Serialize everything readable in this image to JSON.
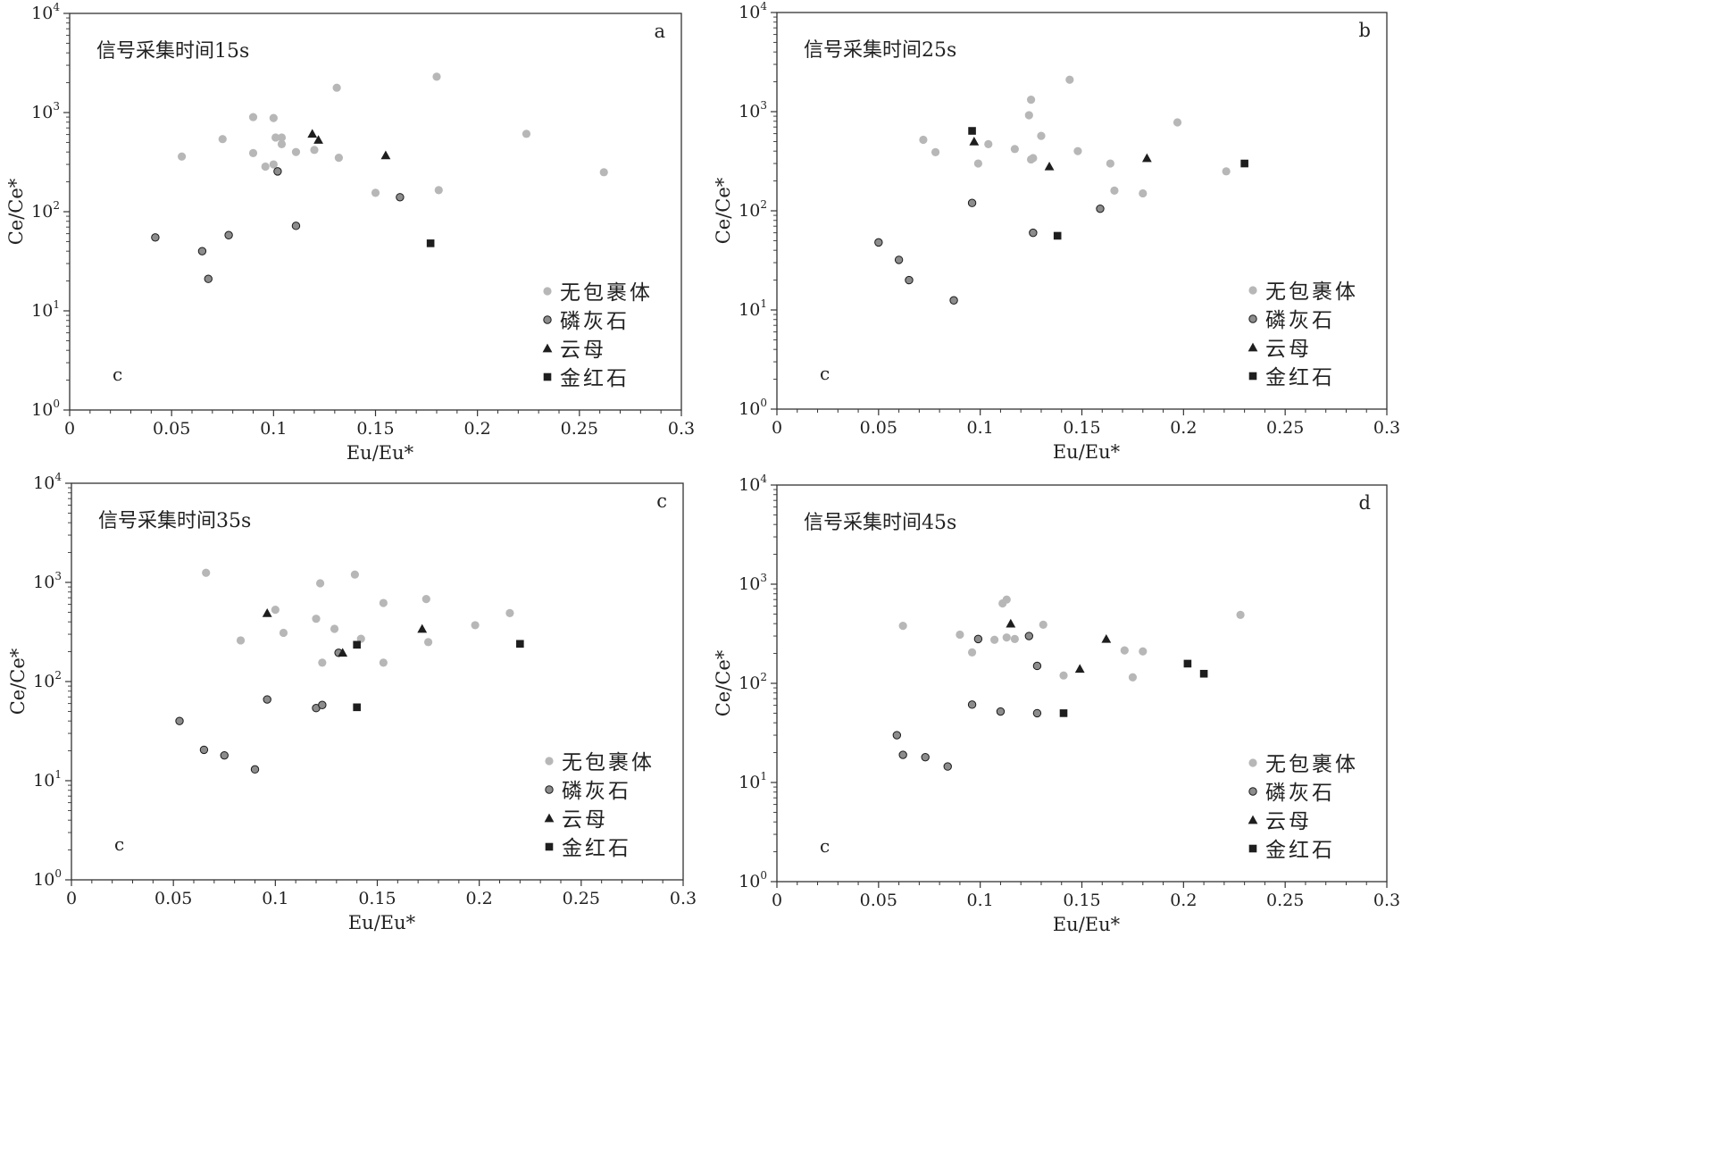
{
  "chart_data": [
    {
      "type": "scatter",
      "panel_letter": "a",
      "title": "信号采集时间15s",
      "corner_label": "c",
      "xlabel": "Eu/Eu*",
      "ylabel": "Ce/Ce*",
      "xlim": [
        0,
        0.3
      ],
      "ylim": [
        1,
        10000
      ],
      "yscale": "log",
      "xticks": [
        "0",
        "0.05",
        "0.1",
        "0.15",
        "0.2",
        "0.25",
        "0.3"
      ],
      "yticks": [
        {
          "base": "10",
          "exp": "0"
        },
        {
          "base": "10",
          "exp": "1"
        },
        {
          "base": "10",
          "exp": "2"
        },
        {
          "base": "10",
          "exp": "3"
        },
        {
          "base": "10",
          "exp": "4"
        }
      ],
      "legend_position": "bottom-right",
      "series": [
        {
          "name": "无包裹体",
          "marker": "circle-light",
          "points": [
            [
              0.055,
              360
            ],
            [
              0.075,
              540
            ],
            [
              0.09,
              900
            ],
            [
              0.09,
              390
            ],
            [
              0.096,
              285
            ],
            [
              0.1,
              880
            ],
            [
              0.101,
              560
            ],
            [
              0.104,
              560
            ],
            [
              0.104,
              480
            ],
            [
              0.1,
              300
            ],
            [
              0.111,
              400
            ],
            [
              0.12,
              420
            ],
            [
              0.131,
              1780
            ],
            [
              0.132,
              350
            ],
            [
              0.15,
              155
            ],
            [
              0.18,
              2300
            ],
            [
              0.181,
              165
            ],
            [
              0.224,
              610
            ],
            [
              0.262,
              250
            ]
          ]
        },
        {
          "name": "磷灰石",
          "marker": "circle-dark",
          "points": [
            [
              0.042,
              55
            ],
            [
              0.065,
              40
            ],
            [
              0.068,
              21
            ],
            [
              0.078,
              58
            ],
            [
              0.102,
              255
            ],
            [
              0.111,
              72
            ],
            [
              0.162,
              140
            ]
          ]
        },
        {
          "name": "云母",
          "marker": "triangle",
          "points": [
            [
              0.119,
              610
            ],
            [
              0.122,
              530
            ],
            [
              0.155,
              370
            ]
          ]
        },
        {
          "name": "金红石",
          "marker": "square",
          "points": [
            [
              0.177,
              48
            ]
          ]
        }
      ]
    },
    {
      "type": "scatter",
      "panel_letter": "b",
      "title": "信号采集时间25s",
      "corner_label": "c",
      "xlabel": "Eu/Eu*",
      "ylabel": "Ce/Ce*",
      "xlim": [
        0,
        0.3
      ],
      "ylim": [
        1,
        10000
      ],
      "yscale": "log",
      "xticks": [
        "0",
        "0.05",
        "0.1",
        "0.15",
        "0.2",
        "0.25",
        "0.3"
      ],
      "yticks": [
        {
          "base": "10",
          "exp": "0"
        },
        {
          "base": "10",
          "exp": "1"
        },
        {
          "base": "10",
          "exp": "2"
        },
        {
          "base": "10",
          "exp": "3"
        },
        {
          "base": "10",
          "exp": "4"
        }
      ],
      "legend_position": "bottom-right",
      "series": [
        {
          "name": "无包裹体",
          "marker": "circle-light",
          "points": [
            [
              0.072,
              520
            ],
            [
              0.078,
              390
            ],
            [
              0.099,
              300
            ],
            [
              0.104,
              470
            ],
            [
              0.117,
              420
            ],
            [
              0.124,
              920
            ],
            [
              0.125,
              1320
            ],
            [
              0.125,
              330
            ],
            [
              0.126,
              340
            ],
            [
              0.13,
              570
            ],
            [
              0.144,
              2100
            ],
            [
              0.148,
              400
            ],
            [
              0.164,
              300
            ],
            [
              0.166,
              160
            ],
            [
              0.18,
              150
            ],
            [
              0.197,
              780
            ],
            [
              0.221,
              250
            ]
          ]
        },
        {
          "name": "磷灰石",
          "marker": "circle-dark",
          "points": [
            [
              0.05,
              48
            ],
            [
              0.06,
              32
            ],
            [
              0.065,
              20
            ],
            [
              0.087,
              12.5
            ],
            [
              0.096,
              120
            ],
            [
              0.126,
              60
            ],
            [
              0.159,
              105
            ]
          ]
        },
        {
          "name": "云母",
          "marker": "triangle",
          "points": [
            [
              0.097,
              500
            ],
            [
              0.134,
              280
            ],
            [
              0.182,
              340
            ]
          ]
        },
        {
          "name": "金红石",
          "marker": "square",
          "points": [
            [
              0.096,
              640
            ],
            [
              0.138,
              56
            ],
            [
              0.23,
              300
            ]
          ]
        }
      ]
    },
    {
      "type": "scatter",
      "panel_letter": "c",
      "title": "信号采集时间35s",
      "corner_label": "c",
      "xlabel": "Eu/Eu*",
      "ylabel": "Ce/Ce*",
      "xlim": [
        0,
        0.3
      ],
      "ylim": [
        1,
        10000
      ],
      "yscale": "log",
      "xticks": [
        "0",
        "0.05",
        "0.1",
        "0.15",
        "0.2",
        "0.25",
        "0.3"
      ],
      "yticks": [
        {
          "base": "10",
          "exp": "0"
        },
        {
          "base": "10",
          "exp": "1"
        },
        {
          "base": "10",
          "exp": "2"
        },
        {
          "base": "10",
          "exp": "3"
        },
        {
          "base": "10",
          "exp": "4"
        }
      ],
      "legend_position": "bottom-right",
      "series": [
        {
          "name": "无包裹体",
          "marker": "circle-light",
          "points": [
            [
              0.066,
              1250
            ],
            [
              0.083,
              260
            ],
            [
              0.1,
              530
            ],
            [
              0.104,
              310
            ],
            [
              0.12,
              430
            ],
            [
              0.122,
              980
            ],
            [
              0.123,
              155
            ],
            [
              0.129,
              340
            ],
            [
              0.139,
              1200
            ],
            [
              0.142,
              270
            ],
            [
              0.153,
              620
            ],
            [
              0.153,
              155
            ],
            [
              0.174,
              680
            ],
            [
              0.175,
              250
            ],
            [
              0.198,
              370
            ],
            [
              0.215,
              490
            ]
          ]
        },
        {
          "name": "磷灰石",
          "marker": "circle-dark",
          "points": [
            [
              0.053,
              40
            ],
            [
              0.065,
              20.5
            ],
            [
              0.075,
              18
            ],
            [
              0.09,
              13
            ],
            [
              0.096,
              66
            ],
            [
              0.12,
              54
            ],
            [
              0.123,
              58
            ],
            [
              0.131,
              195
            ]
          ]
        },
        {
          "name": "云母",
          "marker": "triangle",
          "points": [
            [
              0.096,
              490
            ],
            [
              0.133,
              195
            ],
            [
              0.172,
              340
            ]
          ]
        },
        {
          "name": "金红石",
          "marker": "square",
          "points": [
            [
              0.14,
              235
            ],
            [
              0.14,
              55
            ],
            [
              0.22,
              240
            ]
          ]
        }
      ]
    },
    {
      "type": "scatter",
      "panel_letter": "d",
      "title": "信号采集时间45s",
      "corner_label": "c",
      "xlabel": "Eu/Eu*",
      "ylabel": "Ce/Ce*",
      "xlim": [
        0,
        0.3
      ],
      "ylim": [
        1,
        10000
      ],
      "yscale": "log",
      "xticks": [
        "0",
        "0.05",
        "0.1",
        "0.15",
        "0.2",
        "0.25",
        "0.3"
      ],
      "yticks": [
        {
          "base": "10",
          "exp": "0"
        },
        {
          "base": "10",
          "exp": "1"
        },
        {
          "base": "10",
          "exp": "2"
        },
        {
          "base": "10",
          "exp": "3"
        },
        {
          "base": "10",
          "exp": "4"
        }
      ],
      "legend_position": "bottom-right",
      "series": [
        {
          "name": "无包裹体",
          "marker": "circle-light",
          "points": [
            [
              0.062,
              380
            ],
            [
              0.09,
              310
            ],
            [
              0.096,
              205
            ],
            [
              0.107,
              275
            ],
            [
              0.111,
              640
            ],
            [
              0.113,
              700
            ],
            [
              0.113,
              290
            ],
            [
              0.117,
              280
            ],
            [
              0.131,
              390
            ],
            [
              0.141,
              120
            ],
            [
              0.171,
              215
            ],
            [
              0.175,
              115
            ],
            [
              0.18,
              210
            ],
            [
              0.228,
              490
            ]
          ]
        },
        {
          "name": "磷灰石",
          "marker": "circle-dark",
          "points": [
            [
              0.059,
              30
            ],
            [
              0.062,
              19
            ],
            [
              0.073,
              18
            ],
            [
              0.084,
              14.5
            ],
            [
              0.096,
              61
            ],
            [
              0.099,
              280
            ],
            [
              0.11,
              52
            ],
            [
              0.124,
              300
            ],
            [
              0.128,
              150
            ],
            [
              0.128,
              50
            ]
          ]
        },
        {
          "name": "云母",
          "marker": "triangle",
          "points": [
            [
              0.115,
              400
            ],
            [
              0.149,
              140
            ],
            [
              0.162,
              280
            ]
          ]
        },
        {
          "name": "金红石",
          "marker": "square",
          "points": [
            [
              0.141,
              50
            ],
            [
              0.202,
              158
            ],
            [
              0.21,
              125
            ]
          ]
        }
      ]
    }
  ]
}
